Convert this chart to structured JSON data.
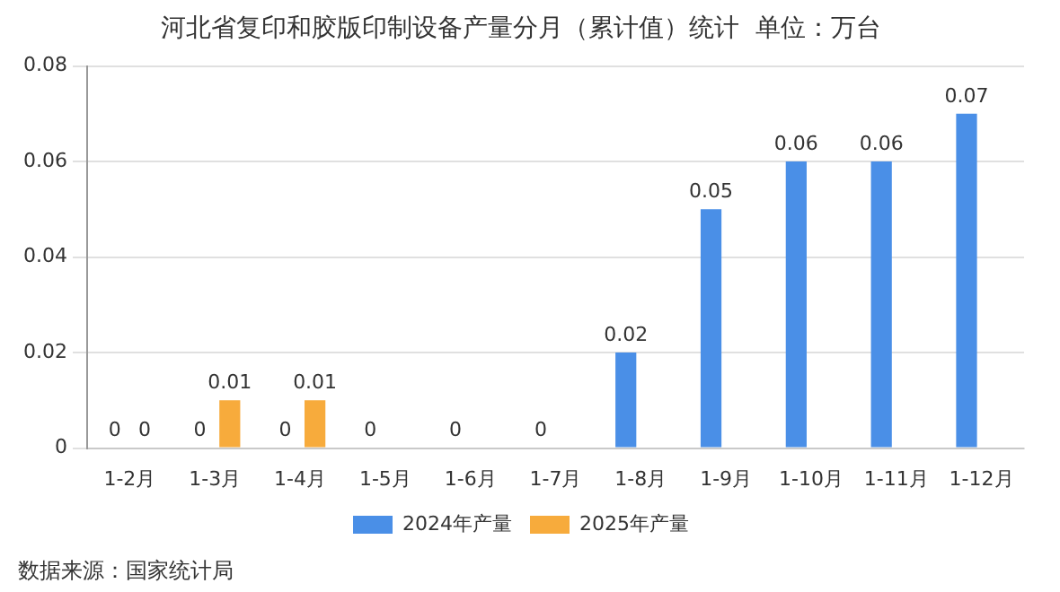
{
  "chart_data": {
    "type": "bar",
    "title": "河北省复印和胶版印制设备产量分月（累计值）统计  单位：万台",
    "categories": [
      "1-2月",
      "1-3月",
      "1-4月",
      "1-5月",
      "1-6月",
      "1-7月",
      "1-8月",
      "1-9月",
      "1-10月",
      "1-11月",
      "1-12月"
    ],
    "series": [
      {
        "name": "2024年产量",
        "color": "#4a8fe7",
        "values": [
          0,
          0,
          0,
          0,
          0,
          0,
          0.02,
          0.05,
          0.06,
          0.06,
          0.07
        ]
      },
      {
        "name": "2025年产量",
        "color": "#f7ab3c",
        "values": [
          0,
          0.01,
          0.01,
          null,
          null,
          null,
          null,
          null,
          null,
          null,
          null
        ]
      }
    ],
    "ylim": [
      0,
      0.08
    ],
    "yticks": [
      0,
      0.02,
      0.04,
      0.06,
      0.08
    ],
    "grid": "y",
    "legend": "bottom",
    "data_labels": true,
    "annotations": [
      "数据来源：国家统计局"
    ]
  }
}
